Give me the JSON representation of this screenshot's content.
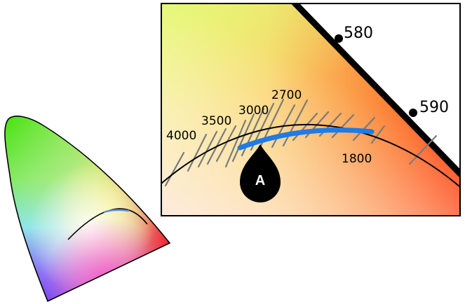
{
  "wavelength_labels": {
    "w580": "580",
    "w590": "590"
  },
  "cct_labels": {
    "k4000": "4000",
    "k3500": "3500",
    "k3000": "3000",
    "k2700": "2700",
    "k1800": "1800"
  },
  "marker_label": "A",
  "colors": {
    "highlight_segment": "#1E7BE8",
    "locus_curve": "#000000",
    "isotherm_ticks": "#7A7A7A",
    "spectral_boundary": "#000000",
    "marker_fill": "#000000",
    "marker_text": "#FFFFFF"
  }
}
